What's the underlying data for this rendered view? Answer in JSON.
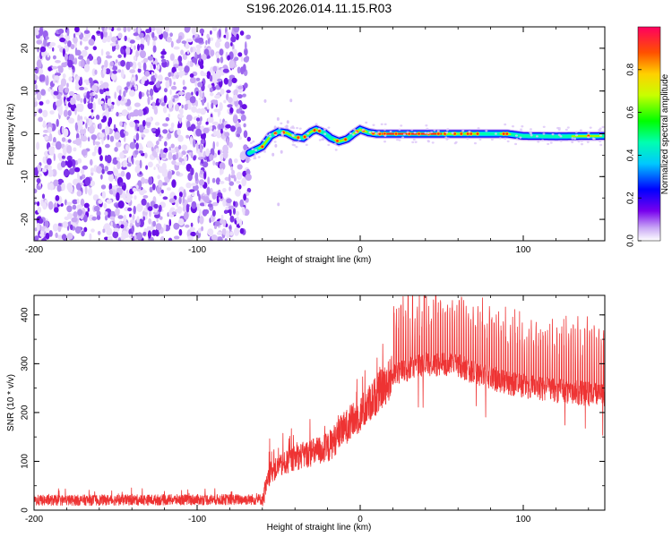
{
  "title": "S196.2026.014.11.15.R03",
  "chart_data": [
    {
      "type": "heatmap",
      "xlabel": "Height of straight line (km)",
      "ylabel": "Frequency (Hz)",
      "xlim": [
        -200,
        150
      ],
      "ylim": [
        -25,
        25
      ],
      "xticks": [
        -200,
        -100,
        0,
        100
      ],
      "yticks": [
        -20,
        -10,
        0,
        10,
        20
      ],
      "colorbar": {
        "label": "Normalized spectral amplitude",
        "range": [
          0,
          1
        ],
        "ticks": [
          0.0,
          0.2,
          0.4,
          0.6,
          0.8
        ]
      },
      "features": {
        "noise_region_x": [
          -200,
          -68
        ],
        "signal_start_x": -68,
        "carrier_track": [
          [
            -68,
            -4.5
          ],
          [
            -60,
            -3
          ],
          [
            -55,
            -0.5
          ],
          [
            -50,
            0.5
          ],
          [
            -45,
            0.2
          ],
          [
            -40,
            -0.8
          ],
          [
            -35,
            -1
          ],
          [
            -30,
            0.5
          ],
          [
            -27,
            1
          ],
          [
            -22,
            0.2
          ],
          [
            -18,
            -1
          ],
          [
            -13,
            -1.8
          ],
          [
            -8,
            -1.2
          ],
          [
            -4,
            0
          ],
          [
            0,
            1
          ],
          [
            5,
            0.3
          ],
          [
            10,
            0
          ],
          [
            50,
            0
          ],
          [
            90,
            0
          ],
          [
            100,
            -0.5
          ],
          [
            120,
            -0.6
          ],
          [
            150,
            -0.5
          ]
        ]
      }
    },
    {
      "type": "line",
      "xlabel": "Height of straight line (km)",
      "ylabel": "SNR (10 * v/v)",
      "xlim": [
        -200,
        150
      ],
      "ylim": [
        0,
        440
      ],
      "xticks": [
        -200,
        -100,
        0,
        100
      ],
      "yticks": [
        0,
        100,
        200,
        300,
        400
      ],
      "series": [
        {
          "name": "SNR",
          "color": "#ee3333",
          "envelope_x": [
            -200,
            -60,
            -55,
            -40,
            -20,
            -10,
            0,
            10,
            20,
            40,
            60,
            90,
            120,
            150
          ],
          "envelope_y": [
            20,
            22,
            80,
            110,
            130,
            170,
            200,
            240,
            280,
            300,
            295,
            260,
            245,
            235
          ]
        }
      ]
    }
  ]
}
